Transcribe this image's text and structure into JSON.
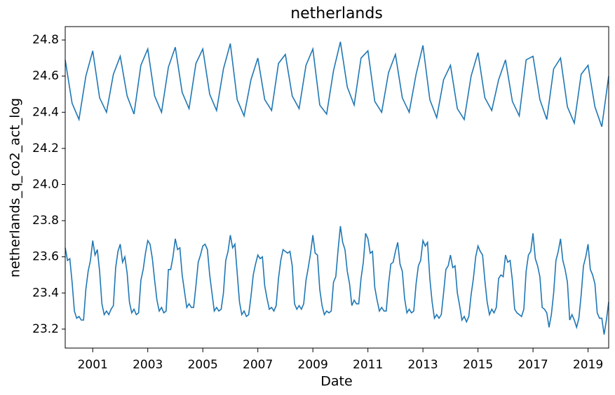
{
  "chart_data": {
    "type": "line",
    "title": "netherlands",
    "xlabel": "Date",
    "ylabel": "netherlands_q_co2_act_log",
    "xlim": [
      "2000-01",
      "2019-10"
    ],
    "ylim": [
      23.095,
      24.874
    ],
    "xticks": [
      "2001",
      "2003",
      "2005",
      "2007",
      "2009",
      "2011",
      "2013",
      "2015",
      "2017",
      "2019"
    ],
    "yticks": [
      23.2,
      23.4,
      23.6,
      23.8,
      {
        "value": 24,
        "label": "24.0"
      },
      24.2,
      24.4,
      24.6,
      24.8
    ],
    "series": [
      {
        "color": "#1f77b4",
        "x": [
          "2000-01",
          "2000-04",
          "2000-07",
          "2000-10",
          "2001-01",
          "2001-04",
          "2001-07",
          "2001-10",
          "2002-01",
          "2002-04",
          "2002-07",
          "2002-10",
          "2003-01",
          "2003-04",
          "2003-07",
          "2003-10",
          "2004-01",
          "2004-04",
          "2004-07",
          "2004-10",
          "2005-01",
          "2005-04",
          "2005-07",
          "2005-10",
          "2006-01",
          "2006-04",
          "2006-07",
          "2006-10",
          "2007-01",
          "2007-04",
          "2007-07",
          "2007-10",
          "2008-01",
          "2008-04",
          "2008-07",
          "2008-10",
          "2009-01",
          "2009-04",
          "2009-07",
          "2009-10",
          "2010-01",
          "2010-04",
          "2010-07",
          "2010-10",
          "2011-01",
          "2011-04",
          "2011-07",
          "2011-10",
          "2012-01",
          "2012-04",
          "2012-07",
          "2012-10",
          "2013-01",
          "2013-04",
          "2013-07",
          "2013-10",
          "2014-01",
          "2014-04",
          "2014-07",
          "2014-10",
          "2015-01",
          "2015-04",
          "2015-07",
          "2015-10",
          "2016-01",
          "2016-04",
          "2016-07",
          "2016-10",
          "2017-01",
          "2017-04",
          "2017-07",
          "2017-10",
          "2018-01",
          "2018-04",
          "2018-07",
          "2018-10",
          "2019-01",
          "2019-04",
          "2019-07",
          "2019-10"
        ],
        "values": [
          24.69,
          24.45,
          24.36,
          24.6,
          24.74,
          24.48,
          24.4,
          24.61,
          24.71,
          24.49,
          24.39,
          24.66,
          24.75,
          24.49,
          24.4,
          24.65,
          24.76,
          24.51,
          24.42,
          24.67,
          24.75,
          24.5,
          24.41,
          24.64,
          24.78,
          24.47,
          24.38,
          24.58,
          24.7,
          24.47,
          24.41,
          24.67,
          24.72,
          24.49,
          24.42,
          24.66,
          24.75,
          24.44,
          24.39,
          24.63,
          24.79,
          24.54,
          24.44,
          24.7,
          24.74,
          24.46,
          24.4,
          24.62,
          24.72,
          24.48,
          24.4,
          24.61,
          24.77,
          24.47,
          24.37,
          24.58,
          24.66,
          24.42,
          24.36,
          24.6,
          24.73,
          24.48,
          24.41,
          24.58,
          24.69,
          24.46,
          24.38,
          24.69,
          24.71,
          24.47,
          24.36,
          24.64,
          24.7,
          24.43,
          24.34,
          24.61,
          24.66,
          24.43,
          24.32,
          24.6
        ]
      },
      {
        "color": "#1f77b4",
        "x": [
          "2000-01",
          "2000-02",
          "2000-03",
          "2000-04",
          "2000-05",
          "2000-06",
          "2000-07",
          "2000-08",
          "2000-09",
          "2000-10",
          "2000-11",
          "2000-12",
          "2001-01",
          "2001-02",
          "2001-03",
          "2001-04",
          "2001-05",
          "2001-06",
          "2001-07",
          "2001-08",
          "2001-09",
          "2001-10",
          "2001-11",
          "2001-12",
          "2002-01",
          "2002-02",
          "2002-03",
          "2002-04",
          "2002-05",
          "2002-06",
          "2002-07",
          "2002-08",
          "2002-09",
          "2002-10",
          "2002-11",
          "2002-12",
          "2003-01",
          "2003-02",
          "2003-03",
          "2003-04",
          "2003-05",
          "2003-06",
          "2003-07",
          "2003-08",
          "2003-09",
          "2003-10",
          "2003-11",
          "2003-12",
          "2004-01",
          "2004-02",
          "2004-03",
          "2004-04",
          "2004-05",
          "2004-06",
          "2004-07",
          "2004-08",
          "2004-09",
          "2004-10",
          "2004-11",
          "2004-12",
          "2005-01",
          "2005-02",
          "2005-03",
          "2005-04",
          "2005-05",
          "2005-06",
          "2005-07",
          "2005-08",
          "2005-09",
          "2005-10",
          "2005-11",
          "2005-12",
          "2006-01",
          "2006-02",
          "2006-03",
          "2006-04",
          "2006-05",
          "2006-06",
          "2006-07",
          "2006-08",
          "2006-09",
          "2006-10",
          "2006-11",
          "2006-12",
          "2007-01",
          "2007-02",
          "2007-03",
          "2007-04",
          "2007-05",
          "2007-06",
          "2007-07",
          "2007-08",
          "2007-09",
          "2007-10",
          "2007-11",
          "2007-12",
          "2008-01",
          "2008-02",
          "2008-03",
          "2008-04",
          "2008-05",
          "2008-06",
          "2008-07",
          "2008-08",
          "2008-09",
          "2008-10",
          "2008-11",
          "2008-12",
          "2009-01",
          "2009-02",
          "2009-03",
          "2009-04",
          "2009-05",
          "2009-06",
          "2009-07",
          "2009-08",
          "2009-09",
          "2009-10",
          "2009-11",
          "2009-12",
          "2010-01",
          "2010-02",
          "2010-03",
          "2010-04",
          "2010-05",
          "2010-06",
          "2010-07",
          "2010-08",
          "2010-09",
          "2010-10",
          "2010-11",
          "2010-12",
          "2011-01",
          "2011-02",
          "2011-03",
          "2011-04",
          "2011-05",
          "2011-06",
          "2011-07",
          "2011-08",
          "2011-09",
          "2011-10",
          "2011-11",
          "2011-12",
          "2012-01",
          "2012-02",
          "2012-03",
          "2012-04",
          "2012-05",
          "2012-06",
          "2012-07",
          "2012-08",
          "2012-09",
          "2012-10",
          "2012-11",
          "2012-12",
          "2013-01",
          "2013-02",
          "2013-03",
          "2013-04",
          "2013-05",
          "2013-06",
          "2013-07",
          "2013-08",
          "2013-09",
          "2013-10",
          "2013-11",
          "2013-12",
          "2014-01",
          "2014-02",
          "2014-03",
          "2014-04",
          "2014-05",
          "2014-06",
          "2014-07",
          "2014-08",
          "2014-09",
          "2014-10",
          "2014-11",
          "2014-12",
          "2015-01",
          "2015-02",
          "2015-03",
          "2015-04",
          "2015-05",
          "2015-06",
          "2015-07",
          "2015-08",
          "2015-09",
          "2015-10",
          "2015-11",
          "2015-12",
          "2016-01",
          "2016-02",
          "2016-03",
          "2016-04",
          "2016-05",
          "2016-06",
          "2016-07",
          "2016-08",
          "2016-09",
          "2016-10",
          "2016-11",
          "2016-12",
          "2017-01",
          "2017-02",
          "2017-03",
          "2017-04",
          "2017-05",
          "2017-06",
          "2017-07",
          "2017-08",
          "2017-09",
          "2017-10",
          "2017-11",
          "2017-12",
          "2018-01",
          "2018-02",
          "2018-03",
          "2018-04",
          "2018-05",
          "2018-06",
          "2018-07",
          "2018-08",
          "2018-09",
          "2018-10",
          "2018-11",
          "2018-12",
          "2019-01",
          "2019-02",
          "2019-03",
          "2019-04",
          "2019-05",
          "2019-06",
          "2019-07",
          "2019-08",
          "2019-09",
          "2019-10"
        ],
        "values": [
          23.65,
          23.58,
          23.59,
          23.46,
          23.3,
          23.26,
          23.27,
          23.25,
          23.25,
          23.42,
          23.52,
          23.58,
          23.69,
          23.61,
          23.64,
          23.52,
          23.34,
          23.28,
          23.3,
          23.28,
          23.31,
          23.33,
          23.54,
          23.63,
          23.67,
          23.57,
          23.6,
          23.51,
          23.35,
          23.29,
          23.31,
          23.28,
          23.29,
          23.47,
          23.53,
          23.62,
          23.69,
          23.67,
          23.59,
          23.47,
          23.36,
          23.3,
          23.32,
          23.29,
          23.3,
          23.53,
          23.53,
          23.6,
          23.7,
          23.64,
          23.65,
          23.5,
          23.41,
          23.32,
          23.34,
          23.32,
          23.32,
          23.44,
          23.57,
          23.61,
          23.66,
          23.67,
          23.64,
          23.5,
          23.4,
          23.3,
          23.32,
          23.3,
          23.31,
          23.4,
          23.58,
          23.63,
          23.72,
          23.65,
          23.67,
          23.51,
          23.35,
          23.28,
          23.3,
          23.27,
          23.28,
          23.38,
          23.5,
          23.56,
          23.61,
          23.59,
          23.6,
          23.44,
          23.37,
          23.31,
          23.32,
          23.3,
          23.33,
          23.48,
          23.58,
          23.64,
          23.63,
          23.62,
          23.63,
          23.55,
          23.34,
          23.31,
          23.33,
          23.31,
          23.34,
          23.47,
          23.54,
          23.62,
          23.72,
          23.62,
          23.61,
          23.42,
          23.33,
          23.28,
          23.3,
          23.29,
          23.3,
          23.46,
          23.49,
          23.64,
          23.77,
          23.68,
          23.64,
          23.52,
          23.45,
          23.33,
          23.36,
          23.34,
          23.34,
          23.48,
          23.57,
          23.73,
          23.7,
          23.62,
          23.63,
          23.43,
          23.36,
          23.3,
          23.32,
          23.3,
          23.3,
          23.45,
          23.56,
          23.57,
          23.63,
          23.68,
          23.56,
          23.52,
          23.37,
          23.29,
          23.31,
          23.29,
          23.3,
          23.45,
          23.55,
          23.58,
          23.69,
          23.66,
          23.68,
          23.48,
          23.35,
          23.26,
          23.28,
          23.26,
          23.28,
          23.4,
          23.53,
          23.55,
          23.61,
          23.54,
          23.55,
          23.4,
          23.33,
          23.25,
          23.27,
          23.24,
          23.27,
          23.39,
          23.48,
          23.6,
          23.66,
          23.63,
          23.61,
          23.47,
          23.35,
          23.28,
          23.31,
          23.29,
          23.32,
          23.48,
          23.5,
          23.49,
          23.61,
          23.57,
          23.58,
          23.47,
          23.31,
          23.29,
          23.28,
          23.27,
          23.31,
          23.52,
          23.61,
          23.63,
          23.73,
          23.59,
          23.55,
          23.49,
          23.32,
          23.31,
          23.29,
          23.21,
          23.28,
          23.4,
          23.58,
          23.63,
          23.7,
          23.58,
          23.53,
          23.46,
          23.25,
          23.28,
          23.25,
          23.21,
          23.26,
          23.39,
          23.55,
          23.6,
          23.67,
          23.53,
          23.5,
          23.45,
          23.29,
          23.26,
          23.26,
          23.17,
          23.25,
          23.35
        ]
      }
    ]
  }
}
